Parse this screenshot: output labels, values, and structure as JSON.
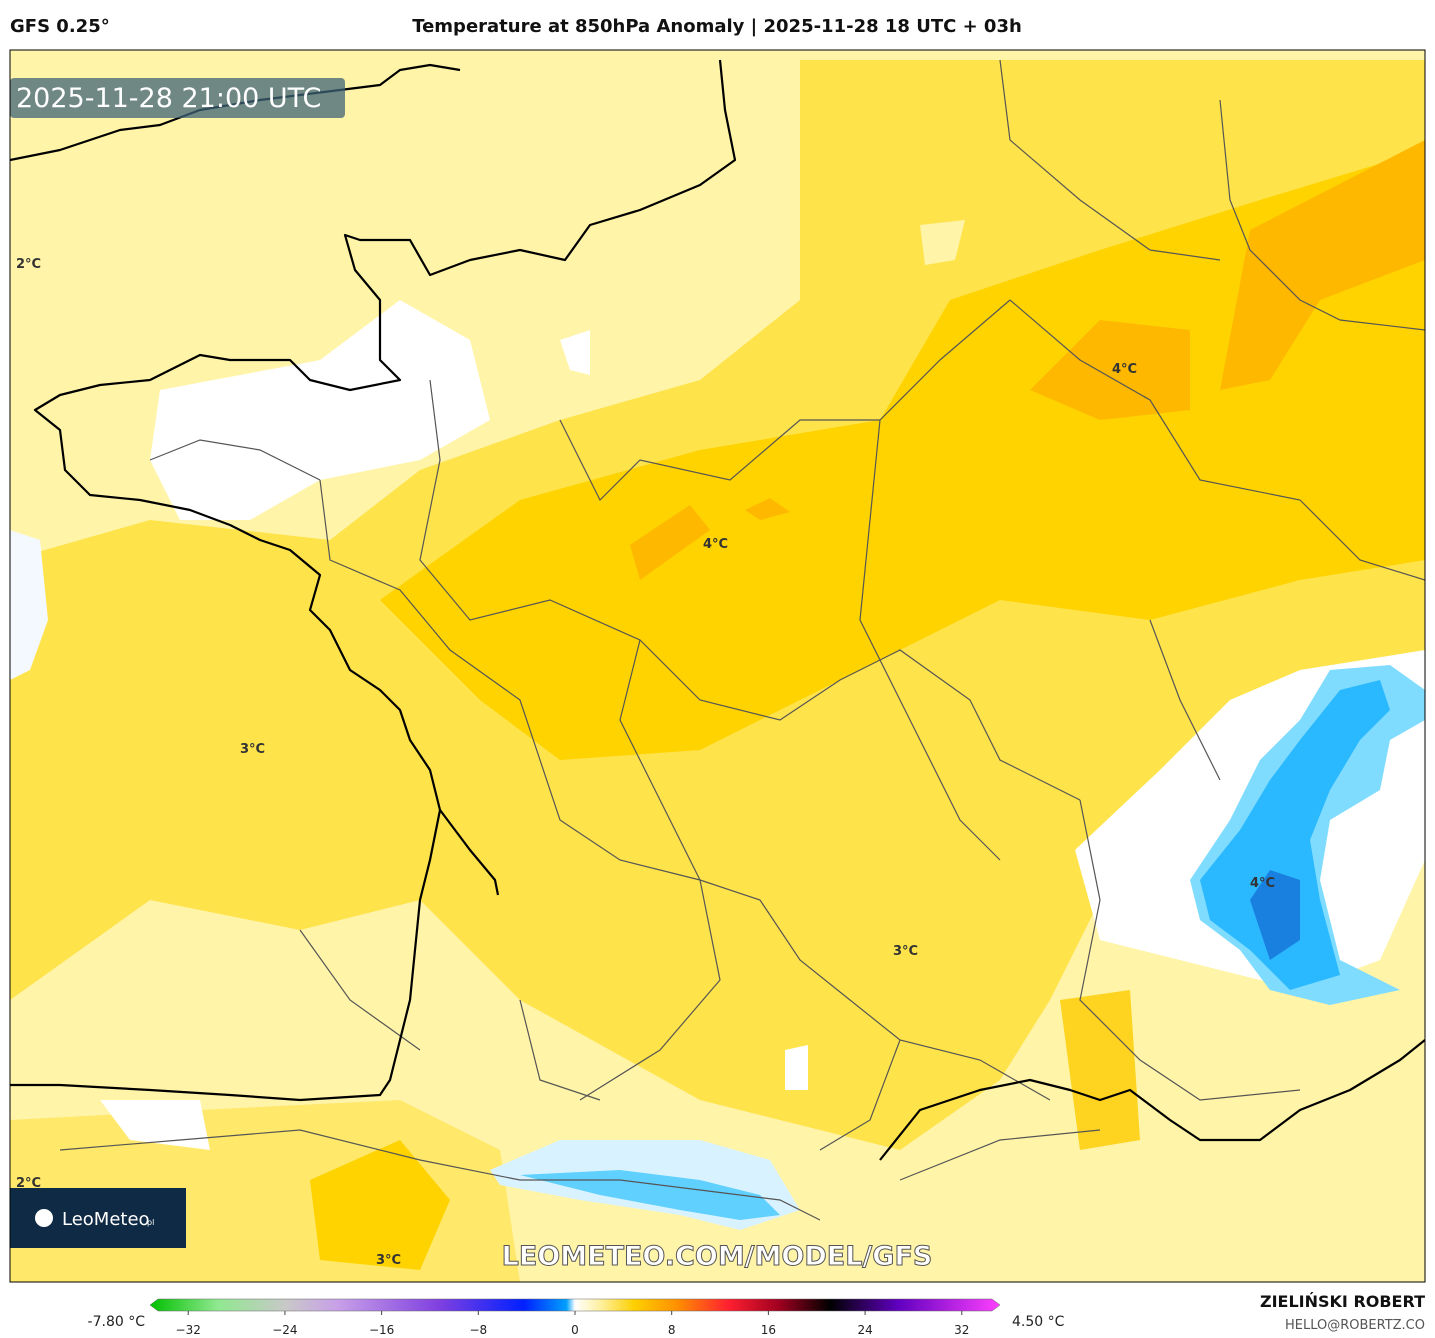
{
  "header": {
    "model": "GFS 0.25°",
    "title": "Temperature at 850hPa Anomaly | 2025-11-28 18 UTC + 03h"
  },
  "map": {
    "valid_time": "2025-11-28 21:00 UTC",
    "contour_labels": [
      "2°C",
      "4°C",
      "4°C",
      "3°C",
      "4°C",
      "3°C",
      "2°C",
      "3°C"
    ],
    "watermark": "LEOMETEO.COM/MODEL/GFS",
    "logo": "LeoMeteo",
    "logo_suffix": "pl"
  },
  "colorbar": {
    "min_label": "-7.80 °C",
    "max_label": "4.50 °C",
    "lim": [
      -34.5,
      34.5
    ],
    "ticks": [
      {
        "value": -32,
        "label": "−32"
      },
      {
        "value": -24,
        "label": "−24"
      },
      {
        "value": -16,
        "label": "−16"
      },
      {
        "value": -8,
        "label": "−8"
      },
      0,
      8,
      16,
      24,
      32
    ]
  },
  "footer": {
    "author": "ZIELIŃSKI ROBERT",
    "contact": "HELLO@ROBERTZ.CO"
  }
}
